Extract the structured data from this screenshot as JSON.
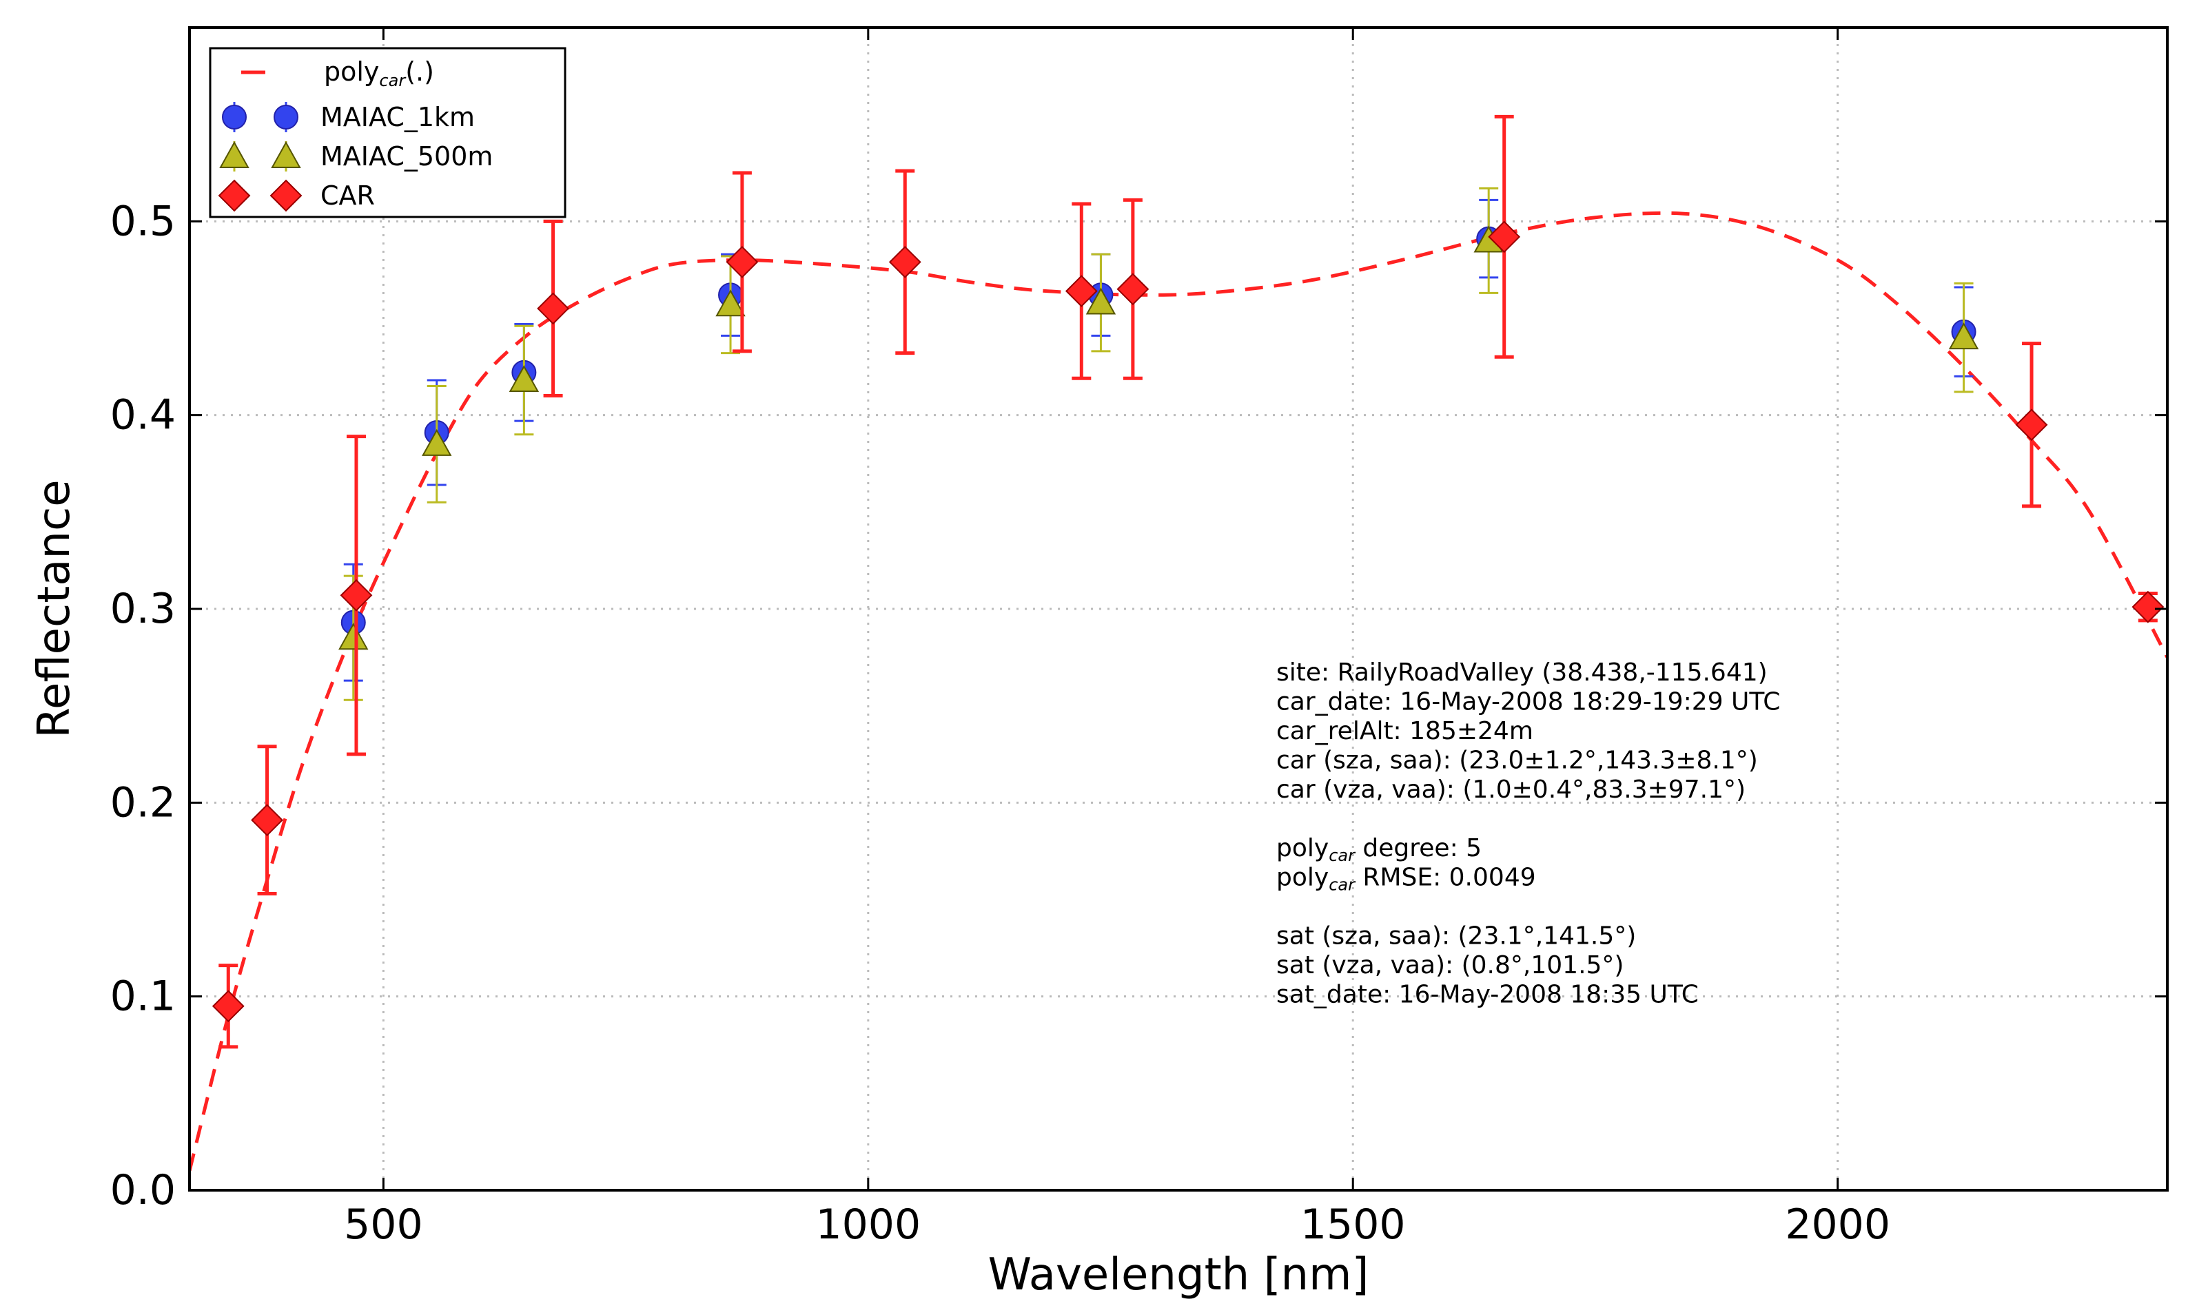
{
  "chart_data": {
    "type": "scatter",
    "xlabel": "Wavelength [nm]",
    "ylabel": "Reflectance",
    "xlim": [
      300,
      2340
    ],
    "ylim": [
      0.0,
      0.6
    ],
    "xticks": [
      500,
      1000,
      1500,
      2000
    ],
    "yticks": [
      0.0,
      0.1,
      0.2,
      0.3,
      0.4,
      0.5
    ],
    "ytick_labels": [
      "0.0",
      "0.1",
      "0.2",
      "0.3",
      "0.4",
      "0.5"
    ],
    "grid": true,
    "legend": {
      "placement": "top-left",
      "entries": [
        {
          "label_main": "poly",
          "label_sub": "car",
          "label_tail": "(.)"
        },
        {
          "label": "MAIAC_1km"
        },
        {
          "label": "MAIAC_500m"
        },
        {
          "label": "CAR"
        }
      ]
    },
    "series": [
      {
        "name": "poly_car(.)",
        "kind": "dashed-line",
        "color": "#ff2222",
        "x": [
          300,
          340,
          380,
          420,
          470,
          520,
          560,
          600,
          650,
          700,
          750,
          800,
          870,
          950,
          1040,
          1100,
          1160,
          1220,
          1280,
          1350,
          1450,
          1550,
          1660,
          1750,
          1840,
          1920,
          2000,
          2060,
          2130,
          2200,
          2260,
          2340
        ],
        "y": [
          0.01,
          0.09,
          0.16,
          0.225,
          0.29,
          0.345,
          0.385,
          0.418,
          0.442,
          0.458,
          0.47,
          0.478,
          0.48,
          0.478,
          0.474,
          0.469,
          0.465,
          0.463,
          0.462,
          0.463,
          0.469,
          0.48,
          0.494,
          0.502,
          0.504,
          0.497,
          0.48,
          0.458,
          0.425,
          0.387,
          0.35,
          0.275
        ]
      },
      {
        "name": "MAIAC_1km",
        "kind": "points",
        "color": "#3344ee",
        "points": [
          {
            "x": 469,
            "y": 0.293,
            "err": 0.03
          },
          {
            "x": 555,
            "y": 0.391,
            "err": 0.027
          },
          {
            "x": 645,
            "y": 0.422,
            "err": 0.025
          },
          {
            "x": 858,
            "y": 0.462,
            "err": 0.021
          },
          {
            "x": 1240,
            "y": 0.462,
            "err": 0.021
          },
          {
            "x": 1640,
            "y": 0.491,
            "err": 0.02
          },
          {
            "x": 2130,
            "y": 0.443,
            "err": 0.023
          }
        ]
      },
      {
        "name": "MAIAC_500m",
        "kind": "points",
        "color": "#bbbb22",
        "points": [
          {
            "x": 469,
            "y": 0.285,
            "err": 0.032
          },
          {
            "x": 555,
            "y": 0.385,
            "err": 0.03
          },
          {
            "x": 645,
            "y": 0.418,
            "err": 0.028
          },
          {
            "x": 858,
            "y": 0.457,
            "err": 0.025
          },
          {
            "x": 1240,
            "y": 0.458,
            "err": 0.025
          },
          {
            "x": 1640,
            "y": 0.49,
            "err": 0.027
          },
          {
            "x": 2130,
            "y": 0.44,
            "err": 0.028
          }
        ]
      },
      {
        "name": "CAR",
        "kind": "points",
        "color": "#ff2222",
        "points": [
          {
            "x": 340,
            "y": 0.095,
            "err": 0.021
          },
          {
            "x": 380,
            "y": 0.191,
            "err": 0.038
          },
          {
            "x": 472,
            "y": 0.307,
            "err": 0.082
          },
          {
            "x": 675,
            "y": 0.455,
            "err": 0.045
          },
          {
            "x": 870,
            "y": 0.479,
            "err": 0.046
          },
          {
            "x": 1038,
            "y": 0.479,
            "err": 0.047
          },
          {
            "x": 1220,
            "y": 0.464,
            "err": 0.045
          },
          {
            "x": 1273,
            "y": 0.465,
            "err": 0.046
          },
          {
            "x": 1656,
            "y": 0.492,
            "err": 0.062
          },
          {
            "x": 2200,
            "y": 0.395,
            "err": 0.042
          },
          {
            "x": 2320,
            "y": 0.301,
            "err": 0.007
          }
        ]
      }
    ],
    "annotations": [
      {
        "text": "site: RailyRoadValley (38.438,-115.641)"
      },
      {
        "text": "car_date: 16-May-2008 18:29-19:29 UTC"
      },
      {
        "text": "car_relAlt: 185±24m"
      },
      {
        "text": "car (sza, saa): (23.0±1.2°,143.3±8.1°)"
      },
      {
        "text": "car (vza, vaa): (1.0±0.4°,83.3±97.1°)"
      },
      {
        "text": ""
      },
      {
        "main": "poly",
        "sub": "car",
        "tail": " degree: 5"
      },
      {
        "main": "poly",
        "sub": "car",
        "tail": " RMSE: 0.0049"
      },
      {
        "text": ""
      },
      {
        "text": "sat (sza, saa): (23.1°,141.5°)"
      },
      {
        "text": "sat (vza, vaa): (0.8°,101.5°)"
      },
      {
        "text": "sat_date: 16-May-2008 18:35 UTC"
      }
    ]
  }
}
